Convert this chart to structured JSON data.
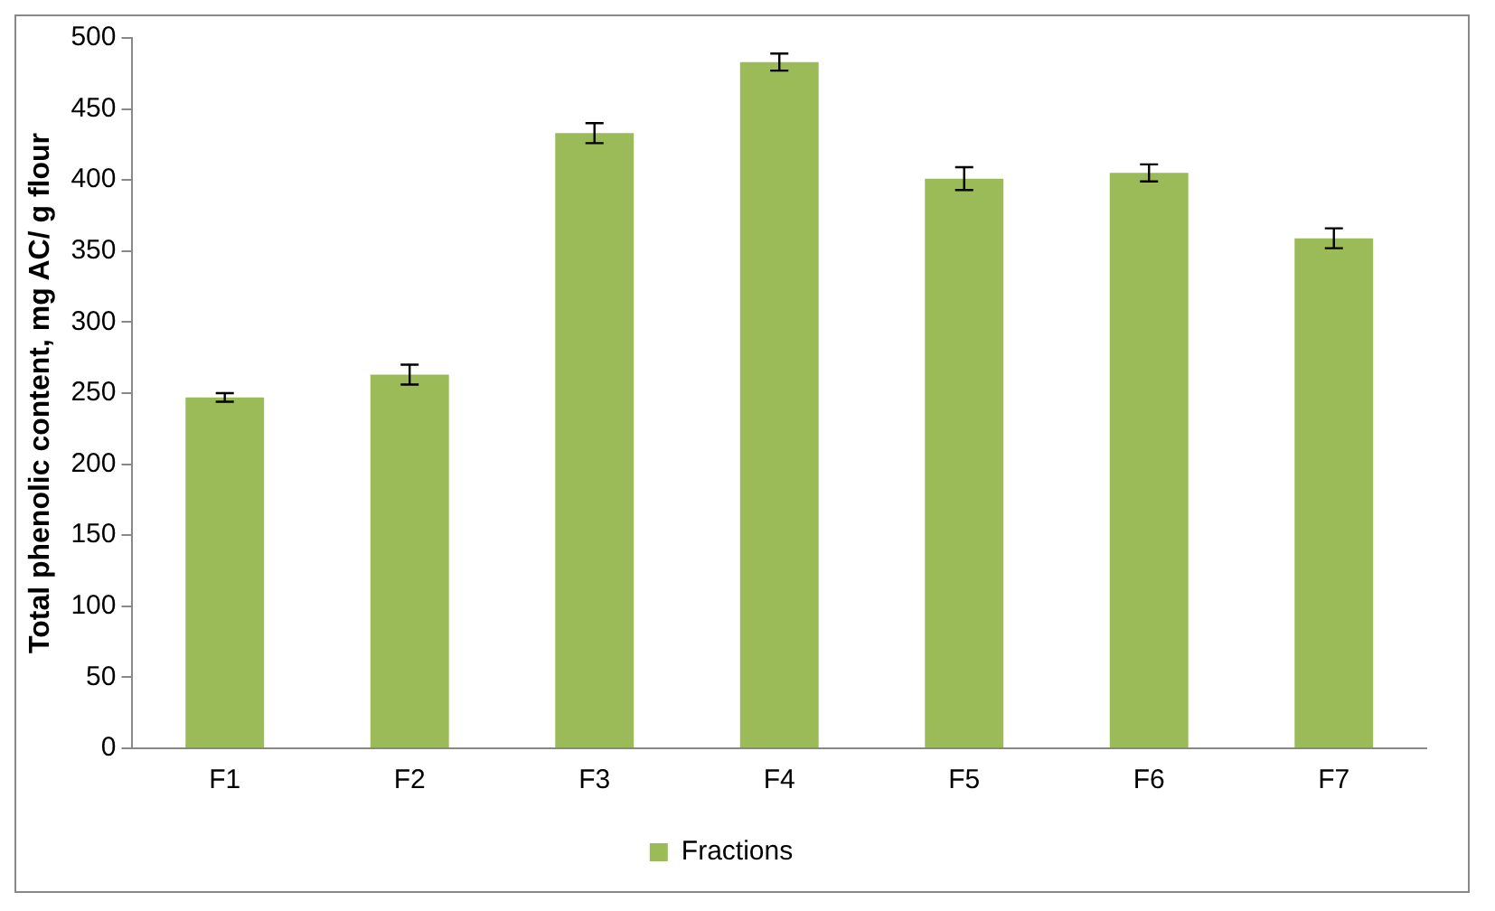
{
  "chart_data": {
    "type": "bar",
    "ylabel": "Total phenolic content, mg AC/ g flour",
    "categories": [
      "F1",
      "F2",
      "F3",
      "F4",
      "F5",
      "F6",
      "F7"
    ],
    "series": [
      {
        "name": "Fractions",
        "color": "#9bbb59",
        "values": [
          247,
          263,
          433,
          483,
          401,
          405,
          359
        ],
        "errors": [
          3,
          7,
          7,
          6,
          8,
          6,
          7
        ]
      }
    ],
    "ylim": [
      0,
      500
    ],
    "yticks": [
      0,
      50,
      100,
      150,
      200,
      250,
      300,
      350,
      400,
      450,
      500
    ],
    "grid": false,
    "legend": "bottom"
  }
}
